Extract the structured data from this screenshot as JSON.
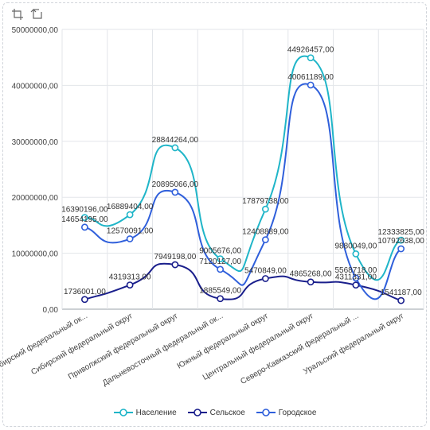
{
  "colors": {
    "Население": "#1fb5c8",
    "Сельское": "#1a1f8c",
    "Городское": "#2f5fdb"
  },
  "icons": [
    "zoom-area-icon",
    "zoom-reset-icon"
  ],
  "chart_data": {
    "type": "line",
    "smooth": true,
    "categories": [
      "Сибирский федеральный ок...",
      "Сибирский федеральный округ",
      "Приволжский федеральный округ",
      "Дальневосточный федеральный ок...",
      "Южный федеральный округ",
      "Центральный федеральный округ",
      "Северо-Кавказский федеральный ...",
      "Уральский федеральный округ"
    ],
    "y_ticks": [
      "0,00",
      "10000000,00",
      "20000000,00",
      "30000000,00",
      "40000000,00",
      "50000000,00"
    ],
    "ylim": [
      0,
      50000000
    ],
    "grid": true,
    "legend_position": "bottom",
    "series": [
      {
        "name": "Население",
        "values": [
          16390196,
          16889404,
          28844264,
          9005676,
          17879738,
          44926457,
          9880049,
          12333825
        ],
        "labels": [
          "16390196,00",
          "16889404,00",
          "28844264,00",
          "9005676,00",
          "17879738,00",
          "44926457,00",
          "9880049,00",
          "12333825,00"
        ]
      },
      {
        "name": "Сельское",
        "values": [
          1736001,
          4319313,
          7949198,
          1885549,
          5470849,
          4865268,
          4311331,
          1541187
        ],
        "labels": [
          "1736001,00",
          "4319313,00",
          "7949198,00",
          "1885549,00",
          "5470849,00",
          "4865268,00",
          "4311331,00",
          "1541187,00"
        ]
      },
      {
        "name": "Городское",
        "values": [
          14654195,
          12570091,
          20895066,
          7120127,
          12408889,
          40061189,
          5568718,
          10792638
        ],
        "labels": [
          "14654195,00",
          "12570091,00",
          "20895066,00",
          "7120127,00",
          "12408889,00",
          "40061189,00",
          "5568718,00",
          "10792638,00"
        ]
      }
    ]
  }
}
